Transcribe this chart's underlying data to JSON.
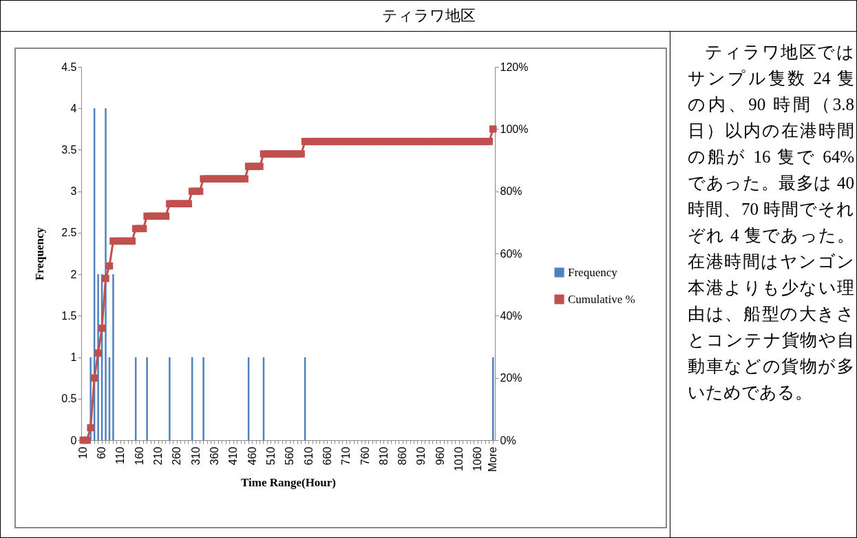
{
  "chart_data": {
    "type": "bar",
    "title": "ティラワ地区",
    "xlabel": "Time Range(Hour)",
    "ylabel": "Frequency",
    "annotations": [
      "ティラワ地区ではサンプル隻数 24 隻の内、90 時間（3.8 日）以内の在港時間の船が 16 隻で 64%であった。最多は 40 時間、70 時間でそれぞれ 4 隻であった。在港時間はヤンゴン本港よりも少ない理由は、船型の大きさとコンテナ貨物や自動車などの貨物が多いためである。"
    ],
    "categories": [
      "10",
      null,
      null,
      null,
      null,
      "60",
      null,
      null,
      null,
      null,
      "110",
      null,
      null,
      null,
      null,
      "160",
      null,
      null,
      null,
      null,
      "210",
      null,
      null,
      null,
      null,
      "260",
      null,
      null,
      null,
      null,
      "310",
      null,
      null,
      null,
      null,
      "360",
      null,
      null,
      null,
      null,
      "410",
      null,
      null,
      null,
      null,
      "460",
      null,
      null,
      null,
      null,
      "510",
      null,
      null,
      null,
      null,
      "560",
      null,
      null,
      null,
      null,
      "610",
      null,
      null,
      null,
      null,
      "660",
      null,
      null,
      null,
      null,
      "710",
      null,
      null,
      null,
      null,
      "760",
      null,
      null,
      null,
      null,
      "810",
      null,
      null,
      null,
      null,
      "860",
      null,
      null,
      null,
      null,
      "910",
      null,
      null,
      null,
      null,
      "960",
      null,
      null,
      null,
      null,
      "1010",
      null,
      null,
      null,
      null,
      "1060",
      null,
      null,
      null,
      "More"
    ],
    "series": [
      {
        "name": "Frequency",
        "color": "#4f81bd",
        "values": [
          0,
          0,
          1,
          4,
          2,
          2,
          4,
          1,
          2,
          0,
          0,
          0,
          0,
          0,
          1,
          0,
          0,
          1,
          0,
          0,
          0,
          0,
          0,
          1,
          0,
          0,
          0,
          0,
          0,
          1,
          0,
          0,
          1,
          0,
          0,
          0,
          0,
          0,
          0,
          0,
          0,
          0,
          0,
          0,
          1,
          0,
          0,
          0,
          1,
          0,
          0,
          0,
          0,
          0,
          0,
          0,
          0,
          0,
          0,
          1,
          0,
          0,
          0,
          0,
          0,
          0,
          0,
          0,
          0,
          0,
          0,
          0,
          0,
          0,
          0,
          0,
          0,
          0,
          0,
          0,
          0,
          0,
          0,
          0,
          0,
          0,
          0,
          0,
          0,
          0,
          0,
          0,
          0,
          0,
          0,
          0,
          0,
          0,
          0,
          0,
          0,
          0,
          0,
          0,
          0,
          0,
          0,
          0,
          0,
          1
        ]
      },
      {
        "name": "Cumulative %",
        "type": "line",
        "axis": "y2",
        "color": "#c0504d",
        "values": [
          0,
          0,
          4,
          20,
          28,
          36,
          52,
          56,
          64,
          64,
          64,
          64,
          64,
          64,
          68,
          68,
          68,
          72,
          72,
          72,
          72,
          72,
          72,
          76,
          76,
          76,
          76,
          76,
          76,
          80,
          80,
          80,
          84,
          84,
          84,
          84,
          84,
          84,
          84,
          84,
          84,
          84,
          84,
          84,
          88,
          88,
          88,
          88,
          92,
          92,
          92,
          92,
          92,
          92,
          92,
          92,
          92,
          92,
          92,
          96,
          96,
          96,
          96,
          96,
          96,
          96,
          96,
          96,
          96,
          96,
          96,
          96,
          96,
          96,
          96,
          96,
          96,
          96,
          96,
          96,
          96,
          96,
          96,
          96,
          96,
          96,
          96,
          96,
          96,
          96,
          96,
          96,
          96,
          96,
          96,
          96,
          96,
          96,
          96,
          96,
          96,
          96,
          96,
          96,
          96,
          96,
          96,
          96,
          96,
          100
        ]
      }
    ],
    "ylim": [
      0,
      4.5
    ],
    "yticks": [
      0,
      0.5,
      1,
      1.5,
      2,
      2.5,
      3,
      3.5,
      4,
      4.5
    ],
    "y2lim": [
      0,
      120
    ],
    "y2ticks": [
      {
        "value": 0,
        "label": "0%"
      },
      {
        "value": 20,
        "label": "20%"
      },
      {
        "value": 40,
        "label": "40%"
      },
      {
        "value": 60,
        "label": "60%"
      },
      {
        "value": 80,
        "label": "80%"
      },
      {
        "value": 100,
        "label": "100%"
      },
      {
        "value": 120,
        "label": "120%"
      }
    ],
    "legend": "right",
    "marker": "square",
    "line_style": "solid"
  }
}
